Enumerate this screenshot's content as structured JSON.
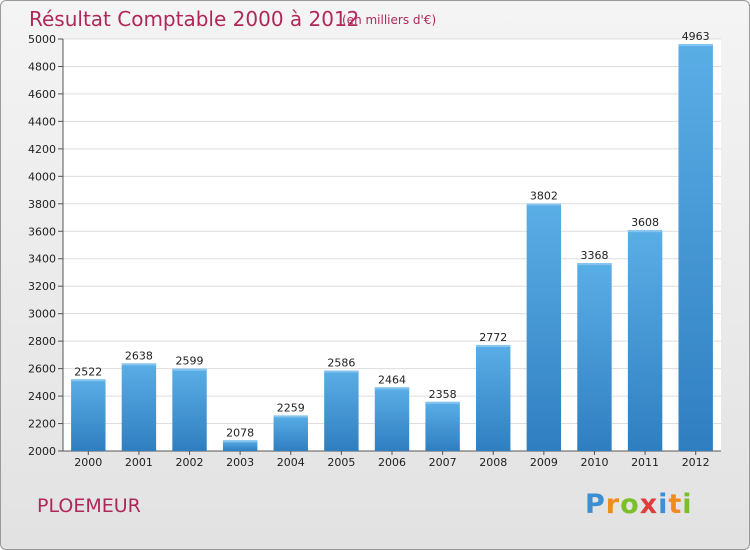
{
  "chart_data": {
    "type": "bar",
    "title": "Résultat Comptable 2000 à 2012",
    "subtitle": "(en milliers d'€)",
    "categories": [
      "2000",
      "2001",
      "2002",
      "2003",
      "2004",
      "2005",
      "2006",
      "2007",
      "2008",
      "2009",
      "2010",
      "2011",
      "2012"
    ],
    "values": [
      2522,
      2638,
      2599,
      2078,
      2259,
      2586,
      2464,
      2358,
      2772,
      3802,
      3368,
      3608,
      4963
    ],
    "ylim": [
      2000,
      5000
    ],
    "ytick_step": 200,
    "xlabel": "",
    "ylabel": "",
    "grid": true,
    "bar_color": "#3d94d6"
  },
  "place": "PLOEMEUR",
  "logo": {
    "letters": [
      "P",
      "r",
      "o",
      "x",
      "i",
      "t",
      "i"
    ],
    "colors": [
      "#3d8fd4",
      "#f08c1c",
      "#7cbf2a",
      "#e03c3c",
      "#3d8fd4",
      "#f08c1c",
      "#7cbf2a"
    ]
  }
}
